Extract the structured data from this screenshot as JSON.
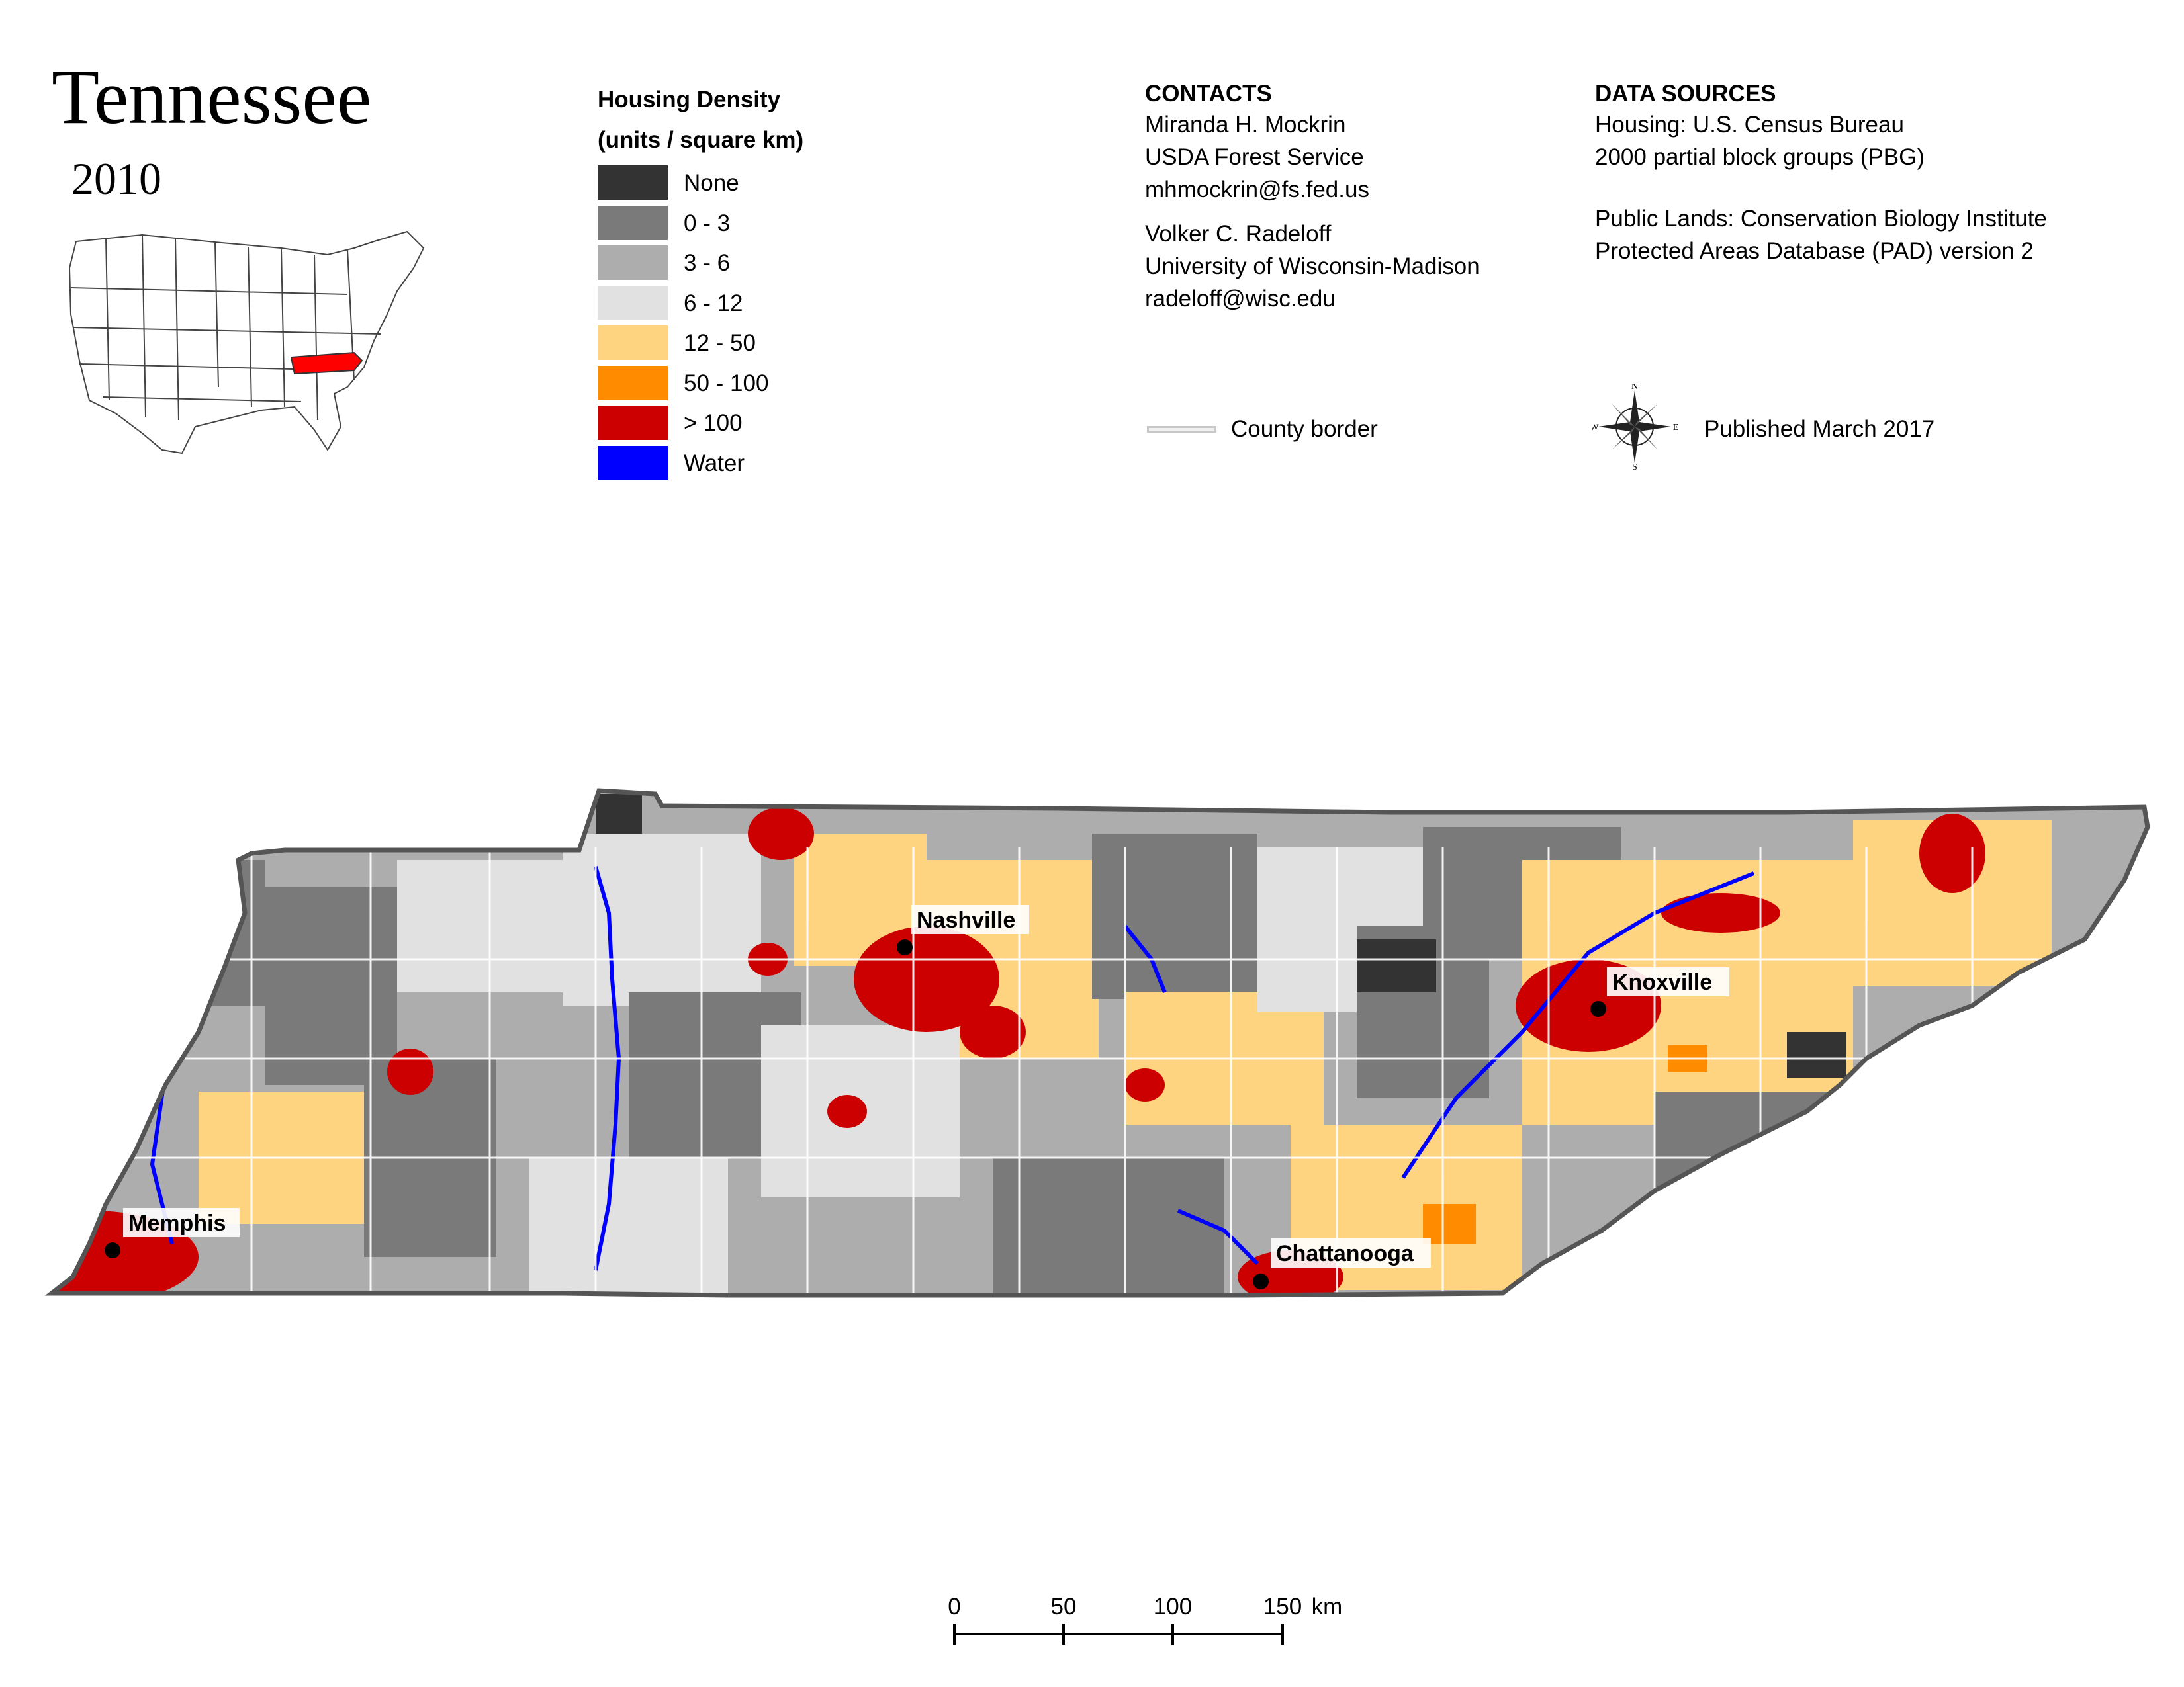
{
  "title": {
    "state": "Tennessee",
    "year": "2010"
  },
  "inset_map": {
    "highlight_color": "#ff0000"
  },
  "legend": {
    "title_line1": "Housing Density",
    "title_line2": "(units / square km)",
    "items": [
      {
        "label": "None",
        "color": "#333333"
      },
      {
        "label": "0 - 3",
        "color": "#7a7a7a"
      },
      {
        "label": "3 - 6",
        "color": "#adadad"
      },
      {
        "label": "6 - 12",
        "color": "#e1e1e1"
      },
      {
        "label": "12 - 50",
        "color": "#ffd480"
      },
      {
        "label": "50 - 100",
        "color": "#ff8c00"
      },
      {
        "label": "> 100",
        "color": "#cc0000"
      },
      {
        "label": "Water",
        "color": "#0000ff"
      }
    ]
  },
  "contacts": {
    "heading": "CONTACTS",
    "person1": {
      "name": "Miranda H. Mockrin",
      "org": "USDA Forest Service",
      "email": "mhmockrin@fs.fed.us"
    },
    "person2": {
      "name": "Volker C. Radeloff",
      "org": "University of Wisconsin-Madison",
      "email": "radeloff@wisc.edu"
    }
  },
  "data_sources": {
    "heading": "DATA SOURCES",
    "housing_line1": "Housing: U.S. Census Bureau",
    "housing_line2": "2000 partial block groups (PBG)",
    "public_line1": "Public Lands: Conservation Biology Institute",
    "public_line2": "Protected Areas Database (PAD) version 2"
  },
  "county_border_label": "County border",
  "published": "Published March 2017",
  "compass": {
    "n": "N",
    "s": "S",
    "e": "E",
    "w": "W"
  },
  "cities": [
    {
      "name": "Nashville"
    },
    {
      "name": "Knoxville"
    },
    {
      "name": "Memphis"
    },
    {
      "name": "Chattanooga"
    }
  ],
  "scale_bar": {
    "ticks": [
      "0",
      "50",
      "100",
      "150"
    ],
    "unit": "km"
  }
}
